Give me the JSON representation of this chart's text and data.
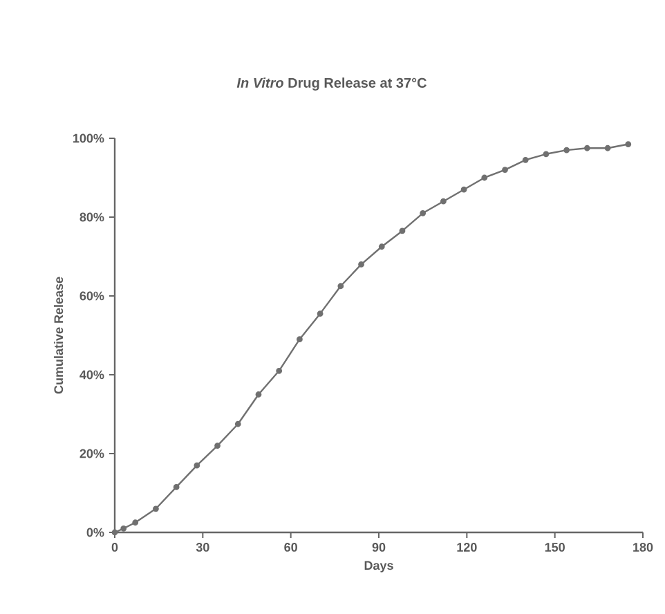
{
  "chart_data": {
    "type": "line",
    "title": "*In Vitro* Drug Release at 37°C",
    "xlabel": "Days",
    "ylabel": "Cumulative Release",
    "x": [
      0,
      3,
      7,
      14,
      21,
      28,
      35,
      42,
      49,
      56,
      63,
      70,
      77,
      84,
      91,
      98,
      105,
      112,
      119,
      126,
      133,
      140,
      147,
      154,
      161,
      168,
      175
    ],
    "series": [
      {
        "color": "#707070",
        "values": [
          0,
          1,
          2.5,
          6,
          11.5,
          17,
          22,
          27.5,
          35,
          41,
          49,
          55.5,
          62.5,
          68,
          72.5,
          76.5,
          81,
          84,
          87,
          90,
          92,
          94.5,
          96,
          97,
          97.5,
          97.5,
          98.5
        ]
      }
    ],
    "xlim": [
      0,
      180
    ],
    "xticks": [
      0,
      30,
      60,
      90,
      120,
      150,
      180
    ],
    "ylim": [
      0,
      100
    ],
    "yticks": [
      {
        "value": 0,
        "label": "0%"
      },
      {
        "value": 20,
        "label": "20%"
      },
      {
        "value": 40,
        "label": "40%"
      },
      {
        "value": 60,
        "label": "60%"
      },
      {
        "value": 80,
        "label": "80%"
      },
      {
        "value": 100,
        "label": "100%"
      }
    ],
    "marker": "circle",
    "line_style": "solid"
  }
}
